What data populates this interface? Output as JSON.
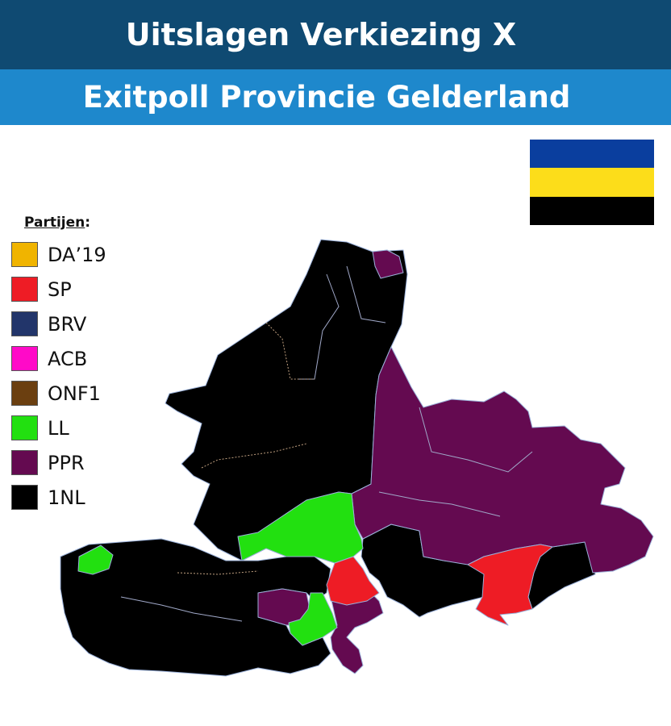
{
  "header": {
    "title": "Uitslagen Verkiezing X",
    "subtitle": "Exitpoll Provincie Gelderland"
  },
  "flag": {
    "name": "flag-gelderland",
    "stripes": [
      "#0a3e9e",
      "#fcdd1a",
      "#000000"
    ]
  },
  "legend": {
    "title": "Partijen",
    "title_suffix": ":",
    "items": [
      {
        "label": "DA’19",
        "color": "#f0b400"
      },
      {
        "label": "SP",
        "color": "#ee1c25"
      },
      {
        "label": "BRV",
        "color": "#22356a"
      },
      {
        "label": "ACB",
        "color": "#ff0ac8"
      },
      {
        "label": "ONF1",
        "color": "#6b3f10"
      },
      {
        "label": "LL",
        "color": "#22e010"
      },
      {
        "label": "PPR",
        "color": "#640a50"
      },
      {
        "label": "1NL",
        "color": "#000000"
      }
    ]
  },
  "map": {
    "region_colors": {
      "1NL": "#000000",
      "PPR": "#640a50",
      "LL": "#22e010",
      "SP": "#ee1c25"
    }
  }
}
